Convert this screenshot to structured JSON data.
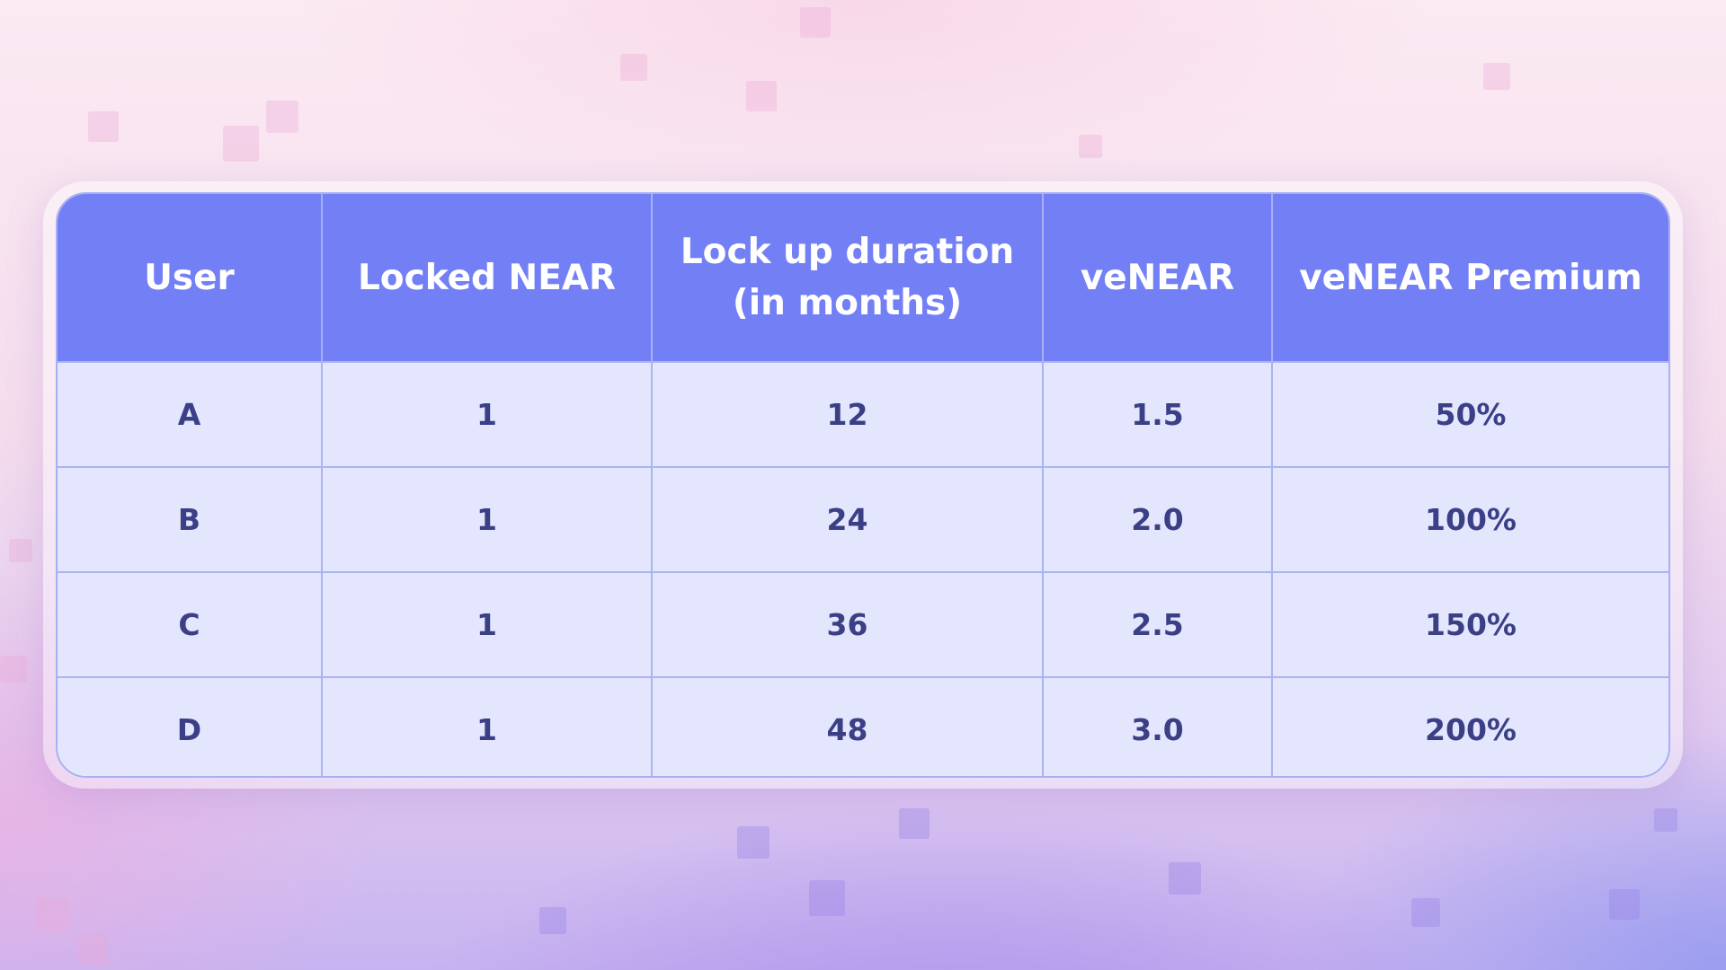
{
  "table": {
    "columns": [
      "User",
      "Locked NEAR",
      "Lock up duration (in months)",
      "veNEAR",
      "veNEAR Premium"
    ],
    "header_duration_line1": "Lock up duration",
    "header_duration_line2": "(in months)",
    "rows": [
      {
        "user": "A",
        "locked_near": "1",
        "duration": "12",
        "venear": "1.5",
        "premium": "50%"
      },
      {
        "user": "B",
        "locked_near": "1",
        "duration": "24",
        "venear": "2.0",
        "premium": "100%"
      },
      {
        "user": "C",
        "locked_near": "1",
        "duration": "36",
        "venear": "2.5",
        "premium": "150%"
      },
      {
        "user": "D",
        "locked_near": "1",
        "duration": "48",
        "venear": "3.0",
        "premium": "200%"
      }
    ]
  },
  "colors": {
    "header_bg": "#7380f5",
    "cell_bg": "#e3e6fc",
    "cell_text": "#3b3f86",
    "grid_line": "#aab4f2"
  }
}
